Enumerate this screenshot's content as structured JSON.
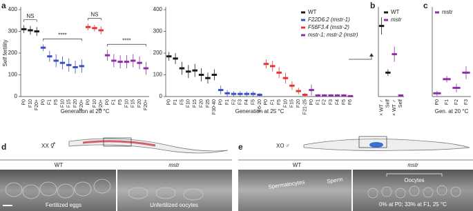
{
  "chart_data": [
    {
      "type": "dot",
      "ylabel": "Self fertility",
      "xlabel": "Generation at 20 °C",
      "categories": [
        "P0",
        "F10",
        "F20+",
        "P0",
        "F1",
        "F5",
        "F10",
        "F15",
        "F20",
        "F20+",
        "P0",
        "F10",
        "F20+",
        "P0",
        "F1",
        "F5",
        "F10",
        "F15",
        "F20",
        "F20+"
      ],
      "ylim": [
        0,
        400
      ],
      "yticks": [
        0,
        100,
        200,
        300,
        400
      ],
      "annotations": [
        "NS",
        "****",
        "NS",
        "****"
      ],
      "series": [
        {
          "color": "#1a1a1a",
          "values": [
            310,
            305,
            300,
            null,
            null,
            null,
            null,
            null,
            null,
            null,
            null,
            null,
            null,
            null,
            null,
            null,
            null,
            null,
            null,
            null
          ],
          "errors": [
            18,
            20,
            20,
            null,
            null,
            null,
            null,
            null,
            null,
            null,
            null,
            null,
            null,
            null,
            null,
            null,
            null,
            null,
            null,
            null
          ]
        },
        {
          "color": "#3b4fc4",
          "values": [
            null,
            null,
            null,
            225,
            185,
            165,
            155,
            145,
            135,
            140,
            null,
            null,
            null,
            null,
            null,
            null,
            null,
            null,
            null,
            null
          ],
          "errors": [
            null,
            null,
            null,
            15,
            25,
            30,
            30,
            30,
            30,
            30,
            null,
            null,
            null,
            null,
            null,
            null,
            null,
            null,
            null,
            null
          ]
        },
        {
          "color": "#e8342f",
          "values": [
            null,
            null,
            null,
            null,
            null,
            null,
            null,
            null,
            null,
            null,
            320,
            315,
            305,
            null,
            null,
            null,
            null,
            null,
            null,
            null
          ],
          "errors": [
            null,
            null,
            null,
            null,
            null,
            null,
            null,
            null,
            null,
            null,
            15,
            15,
            18,
            null,
            null,
            null,
            null,
            null,
            null,
            null
          ]
        },
        {
          "color": "#8e2ea8",
          "values": [
            null,
            null,
            null,
            null,
            null,
            null,
            null,
            null,
            null,
            null,
            null,
            null,
            null,
            190,
            165,
            160,
            160,
            165,
            155,
            130
          ],
          "errors": [
            null,
            null,
            null,
            null,
            null,
            null,
            null,
            null,
            null,
            null,
            null,
            null,
            null,
            25,
            30,
            30,
            30,
            30,
            30,
            30
          ]
        }
      ]
    },
    {
      "type": "dot",
      "xlabel": "Generation at 25 °C",
      "categories": [
        "P0",
        "F1",
        "F5",
        "F10",
        "F15",
        "F20",
        "F25",
        "F30-40",
        "P0",
        "F1",
        "F2",
        "F3",
        "F4",
        "F5",
        "F6-20",
        "P0",
        "F1",
        "F5",
        "F10",
        "F15",
        "F20",
        "F21-25",
        "P0",
        "F1",
        "F2",
        "F3",
        "F4",
        "F5",
        "F6"
      ],
      "ylim": [
        0,
        400
      ],
      "yticks": [
        0,
        100,
        200,
        300,
        400
      ],
      "series": [
        {
          "name": "WT",
          "color": "#1a1a1a",
          "values": [
            185,
            175,
            130,
            115,
            120,
            100,
            85,
            100,
            null,
            null,
            null,
            null,
            null,
            null,
            null,
            null,
            null,
            null,
            null,
            null,
            null,
            null,
            null,
            null,
            null,
            null,
            null,
            null,
            null
          ],
          "errors": [
            20,
            25,
            30,
            30,
            30,
            30,
            25,
            25,
            null,
            null,
            null,
            null,
            null,
            null,
            null,
            null,
            null,
            null,
            null,
            null,
            null,
            null,
            null,
            null,
            null,
            null,
            null,
            null,
            null
          ]
        },
        {
          "name": "F22D6.2 (mstr-1)",
          "color": "#3b4fc4",
          "values": [
            null,
            null,
            null,
            null,
            null,
            null,
            null,
            null,
            30,
            15,
            12,
            12,
            12,
            12,
            8,
            null,
            null,
            null,
            null,
            null,
            null,
            null,
            null,
            null,
            null,
            null,
            null,
            null,
            null
          ],
          "errors": [
            null,
            null,
            null,
            null,
            null,
            null,
            null,
            null,
            20,
            15,
            12,
            12,
            12,
            12,
            8,
            null,
            null,
            null,
            null,
            null,
            null,
            null,
            null,
            null,
            null,
            null,
            null,
            null,
            null
          ]
        },
        {
          "name": "F56F3.4 (mstr-2)",
          "color": "#e8342f",
          "values": [
            null,
            null,
            null,
            null,
            null,
            null,
            null,
            null,
            null,
            null,
            null,
            null,
            null,
            null,
            null,
            150,
            140,
            110,
            85,
            50,
            25,
            8,
            null,
            null,
            null,
            null,
            null,
            null,
            null
          ],
          "errors": [
            null,
            null,
            null,
            null,
            null,
            null,
            null,
            null,
            null,
            null,
            null,
            null,
            null,
            null,
            null,
            20,
            25,
            25,
            25,
            20,
            15,
            8,
            null,
            null,
            null,
            null,
            null,
            null,
            null
          ]
        },
        {
          "name": "mstr-1; mstr-2 (mstr)",
          "color": "#8e2ea8",
          "values": [
            null,
            null,
            null,
            null,
            null,
            null,
            null,
            null,
            null,
            null,
            null,
            null,
            null,
            null,
            null,
            null,
            null,
            null,
            null,
            null,
            null,
            null,
            30,
            5,
            5,
            5,
            5,
            5,
            2
          ],
          "errors": [
            null,
            null,
            null,
            null,
            null,
            null,
            null,
            null,
            null,
            null,
            null,
            null,
            null,
            null,
            null,
            null,
            null,
            null,
            null,
            null,
            null,
            null,
            25,
            6,
            6,
            6,
            6,
            5,
            3
          ]
        }
      ]
    },
    {
      "type": "dot",
      "categories": [
        "× WT ♂",
        "Self",
        "× WT ♂",
        "Self"
      ],
      "ylim": [
        0,
        400
      ],
      "series": [
        {
          "name": "WT",
          "color": "#1a1a1a",
          "values": [
            325,
            110,
            null,
            null
          ],
          "errors": [
            40,
            15,
            null,
            null
          ]
        },
        {
          "name": "mstr",
          "color": "#8e2ea8",
          "values": [
            null,
            null,
            195,
            5
          ],
          "errors": [
            null,
            null,
            35,
            4
          ]
        }
      ]
    },
    {
      "type": "dot",
      "xlabel": "Gen. at 20 °C",
      "categories": [
        "P0",
        "F1",
        "F2",
        "F3"
      ],
      "ylim": [
        0,
        400
      ],
      "series": [
        {
          "name": "mstr",
          "color": "#8e2ea8",
          "values": [
            15,
            80,
            40,
            110
          ],
          "errors": [
            12,
            15,
            20,
            30
          ]
        }
      ]
    }
  ],
  "figure": {
    "panel_labels": [
      "a",
      "b",
      "c",
      "d",
      "e"
    ],
    "d": {
      "karyotype": "XX ⚥",
      "left_title": "WT",
      "right_title": "mstr",
      "left_caption": "Fertilized eggs",
      "right_caption": "Unfertilized oocytes"
    },
    "e": {
      "karyotype": "XO ♂",
      "left_title": "WT",
      "right_title": "mstr",
      "spermatocytes": "Spermatocytes",
      "sperm": "Sperm",
      "oocytes": "Oocytes",
      "note": "0% at P0; 33% at F1, 25 °C"
    }
  }
}
